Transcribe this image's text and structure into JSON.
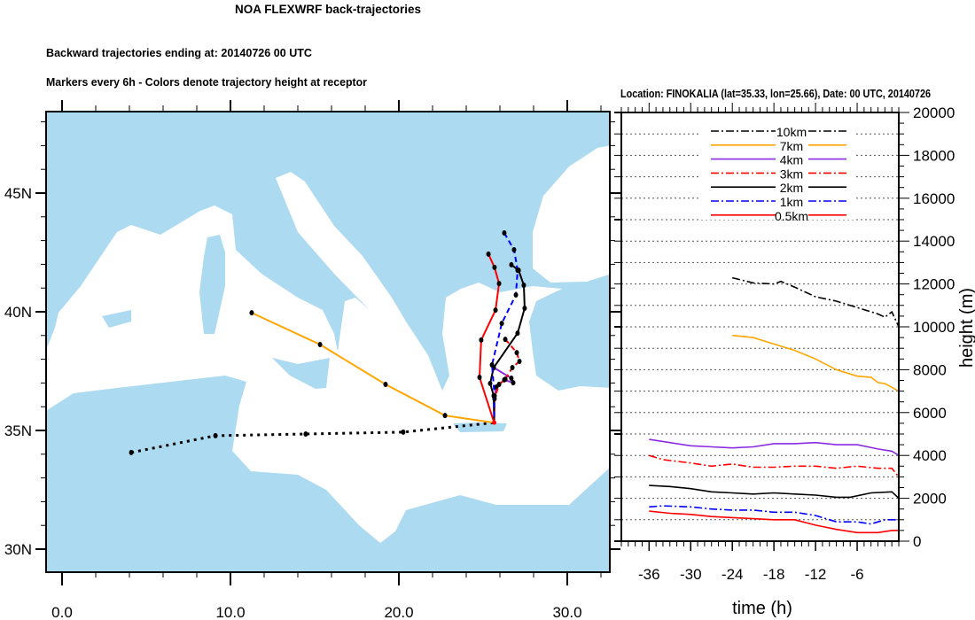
{
  "header": {
    "title": "NOA FLEXWRF back-trajectories",
    "subtitle1": "Backward trajectories ending at: 20140726  00 UTC",
    "subtitle2": "Markers every 6h - Colors denote trajectory height at receptor"
  },
  "colors": {
    "land": "#acdaf1",
    "sea": "#ffffff"
  },
  "chart_data": [
    {
      "type": "scatter",
      "title": "Backward trajectories map",
      "x_ticks": [
        "0.0",
        "10.0",
        "20.0",
        "30.0"
      ],
      "x_tick_values": [
        0,
        10,
        20,
        30
      ],
      "y_ticks": [
        "30N",
        "35N",
        "40N",
        "45N"
      ],
      "y_tick_values": [
        30,
        35,
        40,
        45
      ],
      "xlim": [
        -1,
        32.5
      ],
      "ylim": [
        29.1,
        48.3
      ],
      "receptor": {
        "lon": 25.66,
        "lat": 35.33
      },
      "series": [
        {
          "name": "10km",
          "color": "#000000",
          "style": "dotted",
          "points": [
            [
              4.11,
              34.07
            ],
            [
              9.11,
              34.78
            ],
            [
              14.47,
              34.85
            ],
            [
              20.26,
              34.93
            ],
            [
              25.66,
              35.33
            ]
          ]
        },
        {
          "name": "7km",
          "color": "#ffa500",
          "style": "solid",
          "points": [
            [
              11.26,
              39.96
            ],
            [
              15.32,
              38.62
            ],
            [
              19.21,
              36.94
            ],
            [
              22.74,
              35.63
            ],
            [
              25.66,
              35.33
            ]
          ]
        },
        {
          "name": "4km",
          "color": "#8a2be2",
          "style": "solid",
          "points": [
            [
              25.63,
              37.65
            ],
            [
              26.68,
              37.2
            ],
            [
              26.79,
              37.01
            ],
            [
              26.26,
              37.13
            ],
            [
              25.79,
              36.83
            ],
            [
              25.68,
              36.46
            ],
            [
              25.66,
              35.33
            ]
          ]
        },
        {
          "name": "3km",
          "color": "#ff0000",
          "style": "dashed",
          "points": [
            [
              26.32,
              38.84
            ],
            [
              27.0,
              38.28
            ],
            [
              27.16,
              37.91
            ],
            [
              26.74,
              37.65
            ],
            [
              26.32,
              37.16
            ],
            [
              25.95,
              36.94
            ],
            [
              25.68,
              36.34
            ],
            [
              25.66,
              35.33
            ]
          ]
        },
        {
          "name": "2km",
          "color": "#000000",
          "style": "solid",
          "points": [
            [
              26.68,
              41.98
            ],
            [
              27.11,
              41.75
            ],
            [
              27.42,
              41.12
            ],
            [
              27.47,
              40.15
            ],
            [
              27.05,
              39.1
            ],
            [
              25.63,
              37.65
            ],
            [
              25.42,
              36.98
            ],
            [
              25.63,
              36.46
            ],
            [
              25.66,
              35.33
            ]
          ]
        },
        {
          "name": "1km",
          "color": "#0000ff",
          "style": "dashed",
          "points": [
            [
              26.26,
              43.32
            ],
            [
              26.84,
              42.61
            ],
            [
              27.05,
              41.75
            ],
            [
              26.95,
              40.71
            ],
            [
              26.11,
              39.51
            ],
            [
              25.53,
              37.76
            ],
            [
              25.68,
              36.46
            ],
            [
              25.66,
              35.33
            ]
          ]
        },
        {
          "name": "0.5km",
          "color": "#ff0000",
          "style": "solid",
          "points": [
            [
              25.32,
              42.43
            ],
            [
              25.68,
              41.87
            ],
            [
              25.95,
              41.19
            ],
            [
              25.74,
              40.07
            ],
            [
              24.89,
              38.81
            ],
            [
              24.79,
              37.24
            ],
            [
              25.66,
              35.33
            ]
          ]
        }
      ]
    },
    {
      "type": "line",
      "title": "Location: FINOKALIA (lat=35.33,  lon=25.66), Date: 00 UTC, 20140726",
      "xlabel": "time (h)",
      "ylabel": "height (m)",
      "xlim": [
        -40,
        0
      ],
      "ylim": [
        0,
        20000
      ],
      "x_ticks": [
        "-36",
        "-30",
        "-24",
        "-18",
        "-12",
        "-6"
      ],
      "x_tick_values": [
        -36,
        -30,
        -24,
        -18,
        -12,
        -6
      ],
      "y_ticks": [
        "0",
        "2000",
        "4000",
        "6000",
        "8000",
        "10000",
        "12000",
        "14000",
        "16000",
        "18000",
        "20000"
      ],
      "y_tick_values": [
        0,
        2000,
        4000,
        6000,
        8000,
        10000,
        12000,
        14000,
        16000,
        18000,
        20000
      ],
      "grid": "horizontal dotted every 1000",
      "legend_position": "top-center",
      "series": [
        {
          "name": "10km",
          "color": "#000000",
          "style": "dashdot",
          "points": [
            [
              -24,
              12290
            ],
            [
              -21,
              12050
            ],
            [
              -18,
              12000
            ],
            [
              -17,
              12120
            ],
            [
              -15,
              11850
            ],
            [
              -12,
              11400
            ],
            [
              -9,
              11200
            ],
            [
              -6,
              10900
            ],
            [
              -3,
              10600
            ],
            [
              -2,
              10450
            ],
            [
              -1,
              10700
            ],
            [
              0,
              10000
            ]
          ]
        },
        {
          "name": "7km",
          "color": "#ffa500",
          "style": "solid",
          "points": [
            [
              -24,
              9600
            ],
            [
              -21,
              9500
            ],
            [
              -18,
              9200
            ],
            [
              -15,
              8900
            ],
            [
              -12,
              8500
            ],
            [
              -9,
              8000
            ],
            [
              -6,
              7700
            ],
            [
              -4,
              7650
            ],
            [
              -3,
              7400
            ],
            [
              -2,
              7350
            ],
            [
              0,
              7000
            ]
          ]
        },
        {
          "name": "4km",
          "color": "#8a2be2",
          "style": "solid",
          "points": [
            [
              -36,
              4750
            ],
            [
              -33,
              4600
            ],
            [
              -30,
              4450
            ],
            [
              -27,
              4400
            ],
            [
              -24,
              4350
            ],
            [
              -21,
              4400
            ],
            [
              -18,
              4550
            ],
            [
              -15,
              4550
            ],
            [
              -12,
              4600
            ],
            [
              -9,
              4500
            ],
            [
              -6,
              4500
            ],
            [
              -3,
              4300
            ],
            [
              -1,
              4200
            ],
            [
              0,
              4000
            ]
          ]
        },
        {
          "name": "3km",
          "color": "#ff0000",
          "style": "dashdot",
          "points": [
            [
              -36,
              4000
            ],
            [
              -34,
              3800
            ],
            [
              -30,
              3650
            ],
            [
              -27,
              3500
            ],
            [
              -24,
              3600
            ],
            [
              -21,
              3450
            ],
            [
              -18,
              3450
            ],
            [
              -15,
              3500
            ],
            [
              -12,
              3500
            ],
            [
              -9,
              3400
            ],
            [
              -6,
              3500
            ],
            [
              -3,
              3400
            ],
            [
              -1,
              3400
            ],
            [
              0,
              3000
            ]
          ]
        },
        {
          "name": "2km",
          "color": "#000000",
          "style": "solid",
          "points": [
            [
              -36,
              2600
            ],
            [
              -33,
              2550
            ],
            [
              -30,
              2450
            ],
            [
              -27,
              2300
            ],
            [
              -24,
              2250
            ],
            [
              -21,
              2200
            ],
            [
              -18,
              2250
            ],
            [
              -15,
              2200
            ],
            [
              -12,
              2150
            ],
            [
              -9,
              2050
            ],
            [
              -7,
              2050
            ],
            [
              -4,
              2250
            ],
            [
              -1,
              2300
            ],
            [
              0,
              2000
            ]
          ]
        },
        {
          "name": "1km",
          "color": "#0000ff",
          "style": "dashdot",
          "points": [
            [
              -36,
              1600
            ],
            [
              -34,
              1650
            ],
            [
              -30,
              1600
            ],
            [
              -27,
              1500
            ],
            [
              -24,
              1450
            ],
            [
              -21,
              1450
            ],
            [
              -18,
              1350
            ],
            [
              -15,
              1350
            ],
            [
              -12,
              1200
            ],
            [
              -9,
              900
            ],
            [
              -6,
              900
            ],
            [
              -4,
              800
            ],
            [
              -2,
              1000
            ],
            [
              0,
              1000
            ]
          ]
        },
        {
          "name": "0.5km",
          "color": "#ff0000",
          "style": "solid",
          "points": [
            [
              -36,
              1400
            ],
            [
              -33,
              1300
            ],
            [
              -30,
              1250
            ],
            [
              -27,
              1150
            ],
            [
              -24,
              1100
            ],
            [
              -21,
              1050
            ],
            [
              -18,
              1000
            ],
            [
              -15,
              1000
            ],
            [
              -12,
              750
            ],
            [
              -9,
              550
            ],
            [
              -6,
              400
            ],
            [
              -3,
              400
            ],
            [
              -1,
              500
            ],
            [
              0,
              500
            ]
          ]
        }
      ]
    }
  ]
}
